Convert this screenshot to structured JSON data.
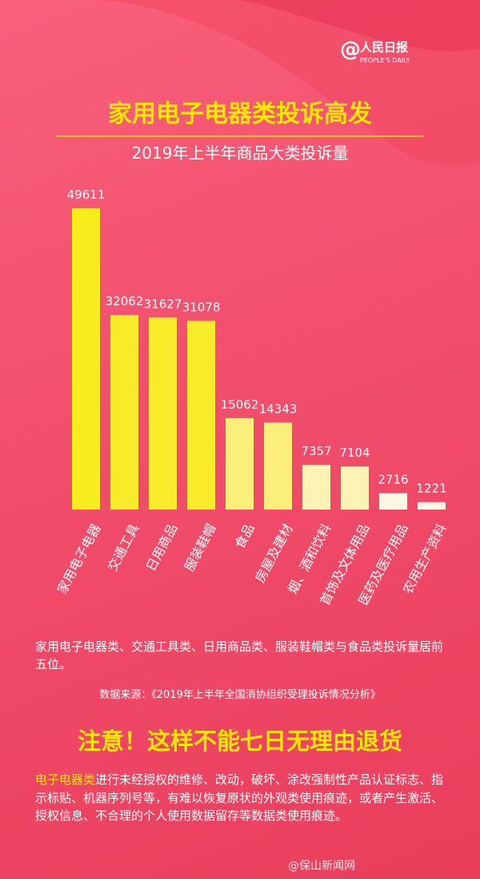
{
  "logo": {
    "mark": "@",
    "name": "人民日报",
    "sub": "PEOPLE'S DAILY"
  },
  "chart_data": {
    "type": "bar",
    "title": "家用电子电器类投诉高发",
    "subtitle": "2019年上半年商品大类投诉量",
    "categories": [
      "家用电子电器",
      "交通工具",
      "日用商品",
      "服装鞋帽",
      "食品",
      "房屋及建材",
      "烟、酒和饮料",
      "首饰及文体用品",
      "医药及医疗用品",
      "农用生产资料"
    ],
    "values": [
      49611,
      32062,
      31627,
      31078,
      15062,
      14343,
      7357,
      7104,
      2716,
      1221
    ],
    "colors": [
      "#f7ec1c",
      "#f8ec2a",
      "#f8ec2a",
      "#f8ec2a",
      "#fbee7a",
      "#fbee7a",
      "#fdf3b4",
      "#fdf3b4",
      "#fff7e6",
      "#fff7e6"
    ]
  },
  "summary": "家用电子电器类、交通工具类、日用商品类、服装鞋帽类与食品类投诉量居前五位。",
  "source": "数据来源：《2019年上半年全国消协组织受理投诉情况分析》",
  "notice": {
    "title": "注意！这样不能七日无理由退货",
    "highlight": "电子电器类",
    "text": "进行未经授权的维修、改动，破坏、涂改强制性产品认证标志、指示标贴、机器序列号等，有难以恢复原状的外观类使用痕迹，或者产生激活、授权信息、不合理的个人使用数据留存等数据类使用痕迹。"
  },
  "watermark": "@保山新闻网"
}
